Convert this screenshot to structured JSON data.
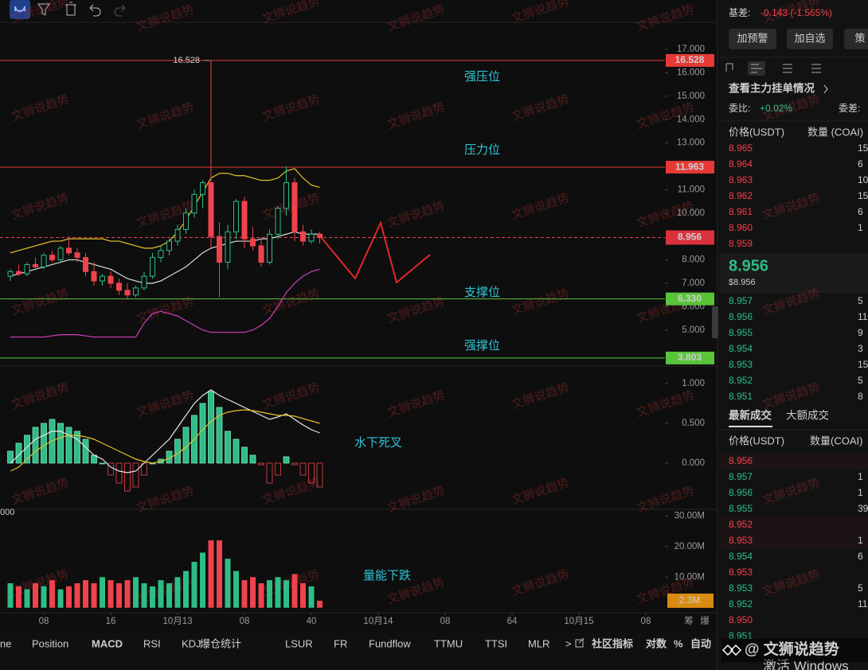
{
  "chart": {
    "xlim": [
      2.76,
      82.29
    ],
    "xticks": [
      {
        "value": 8,
        "label": "08"
      },
      16,
      {
        "value": 24,
        "label": "10月13"
      },
      {
        "value": 32,
        "label": "08"
      },
      40,
      {
        "value": 48,
        "label": "10月14"
      },
      {
        "value": 56,
        "label": "08"
      },
      64,
      {
        "value": 72,
        "label": "10月15"
      },
      {
        "value": 80,
        "label": "08"
      }
    ],
    "x": [
      4,
      5,
      6,
      7,
      8,
      9,
      10,
      11,
      12,
      13,
      14,
      15,
      16,
      17,
      18,
      19,
      20,
      21,
      22,
      23,
      24,
      25,
      26,
      27,
      28,
      29,
      30,
      31,
      32,
      33,
      34,
      35,
      36,
      37,
      38,
      39,
      40,
      41
    ],
    "price": {
      "ylim": [
        3.46,
        18.16
      ],
      "yticks": [
        {
          "value": 17,
          "label": "17.000"
        },
        {
          "value": 16,
          "label": "16.000"
        },
        {
          "value": 15,
          "label": "15.000"
        },
        {
          "value": 14,
          "label": "14.000"
        },
        {
          "value": 13,
          "label": "13.000"
        },
        {
          "value": 11,
          "label": "11.000"
        },
        {
          "value": 10,
          "label": "10.000"
        },
        {
          "value": 8,
          "label": "8.000"
        },
        {
          "value": 7,
          "label": "7.000"
        },
        {
          "value": 6,
          "label": "6.000"
        },
        {
          "value": 5,
          "label": "5.000"
        }
      ],
      "candles": [
        [
          7.3,
          7.6,
          7.1,
          7.5
        ],
        [
          7.5,
          7.8,
          7.3,
          7.4
        ],
        [
          7.4,
          7.9,
          7.3,
          7.8
        ],
        [
          7.8,
          8.1,
          7.6,
          7.7
        ],
        [
          7.7,
          8.3,
          7.6,
          8.2
        ],
        [
          8.2,
          8.4,
          7.9,
          8.0
        ],
        [
          8.0,
          8.6,
          7.9,
          8.5
        ],
        [
          8.5,
          9.0,
          8.2,
          8.3
        ],
        [
          8.3,
          8.5,
          7.9,
          8.1
        ],
        [
          8.1,
          8.3,
          7.3,
          7.5
        ],
        [
          7.5,
          7.9,
          6.9,
          7.1
        ],
        [
          7.1,
          7.4,
          6.9,
          7.3
        ],
        [
          7.3,
          7.5,
          6.8,
          7.0
        ],
        [
          7.0,
          7.2,
          6.5,
          6.7
        ],
        [
          6.7,
          7.0,
          6.3,
          6.5
        ],
        [
          6.5,
          6.9,
          6.4,
          6.8
        ],
        [
          6.8,
          7.5,
          6.7,
          7.3
        ],
        [
          7.3,
          8.3,
          7.2,
          8.1
        ],
        [
          8.1,
          8.6,
          7.9,
          8.4
        ],
        [
          8.4,
          8.9,
          8.2,
          8.8
        ],
        [
          8.8,
          9.5,
          8.6,
          9.3
        ],
        [
          9.3,
          10.2,
          9.1,
          10.0
        ],
        [
          10.0,
          11.0,
          9.8,
          10.8
        ],
        [
          10.8,
          11.4,
          10.2,
          11.3
        ],
        [
          11.3,
          16.528,
          8.5,
          9.0
        ],
        [
          9.0,
          9.6,
          6.4,
          7.9
        ],
        [
          7.9,
          9.5,
          7.6,
          9.2
        ],
        [
          9.2,
          10.6,
          8.9,
          10.5
        ],
        [
          10.5,
          10.7,
          8.5,
          8.9
        ],
        [
          8.9,
          9.4,
          8.4,
          8.6
        ],
        [
          8.6,
          8.9,
          7.7,
          7.9
        ],
        [
          7.9,
          9.3,
          7.8,
          9.1
        ],
        [
          9.1,
          10.3,
          8.9,
          10.2
        ],
        [
          10.2,
          12.0,
          9.9,
          11.3
        ],
        [
          11.3,
          11.5,
          8.8,
          9.2
        ],
        [
          9.2,
          9.5,
          8.6,
          8.8
        ],
        [
          8.8,
          9.3,
          8.7,
          9.1
        ],
        [
          9.1,
          9.2,
          8.7,
          8.956
        ]
      ],
      "upper": [
        8.3,
        8.4,
        8.5,
        8.6,
        8.7,
        8.8,
        8.8,
        8.9,
        8.9,
        8.9,
        8.9,
        8.9,
        8.8,
        8.8,
        8.7,
        8.6,
        8.5,
        8.5,
        8.6,
        8.8,
        9.2,
        9.7,
        10.3,
        10.9,
        11.5,
        11.7,
        11.7,
        11.6,
        11.6,
        11.5,
        11.4,
        11.4,
        11.5,
        11.8,
        11.9,
        11.5,
        11.2,
        11.1
      ],
      "mid": [
        7.3,
        7.4,
        7.5,
        7.6,
        7.7,
        7.8,
        7.9,
        8.0,
        8.0,
        7.9,
        7.8,
        7.7,
        7.6,
        7.4,
        7.2,
        7.1,
        7.0,
        7.0,
        7.1,
        7.3,
        7.5,
        7.7,
        8.0,
        8.3,
        8.5,
        8.6,
        8.7,
        8.8,
        8.8,
        8.8,
        8.9,
        8.9,
        9.0,
        9.1,
        9.2,
        9.1,
        9.1,
        9.1
      ],
      "lower": [
        4.7,
        4.7,
        4.7,
        4.7,
        4.7,
        4.75,
        4.8,
        4.8,
        4.8,
        4.75,
        4.7,
        4.7,
        4.7,
        4.7,
        4.7,
        4.7,
        5.3,
        5.7,
        5.8,
        5.7,
        5.6,
        5.4,
        5.2,
        5.0,
        4.9,
        4.9,
        4.9,
        4.9,
        4.9,
        5.0,
        5.2,
        5.5,
        6.0,
        6.6,
        7.0,
        7.3,
        7.5,
        7.6
      ],
      "upper_color": "#e6c229",
      "mid_color": "#dcdcdc",
      "lower_color": "#d23fb6",
      "levels": [
        {
          "value": 16.528,
          "color": "#e53935"
        },
        {
          "value": 11.963,
          "color": "#e53935"
        },
        {
          "value": 6.33,
          "label": "6.330",
          "color": "#58c43a"
        },
        {
          "value": 3.803,
          "color": "#58c43a"
        }
      ],
      "current": 8.956,
      "spike_label": "16.528",
      "annotations": [
        "强压位",
        "压力位",
        "支撑位",
        "强撑位"
      ]
    },
    "macd": {
      "ylim": [
        -0.58,
        1.22
      ],
      "yticks": [
        {
          "value": 1,
          "label": "1.000"
        },
        {
          "value": 0.5,
          "label": "0.500"
        },
        {
          "value": 0,
          "label": "0.000"
        }
      ],
      "hist": [
        0.15,
        0.25,
        0.35,
        0.45,
        0.5,
        0.55,
        0.5,
        0.45,
        0.4,
        0.3,
        0.1,
        0.0,
        -0.15,
        -0.25,
        -0.35,
        -0.3,
        -0.15,
        0.0,
        0.05,
        0.15,
        0.3,
        0.45,
        0.6,
        0.75,
        0.9,
        0.7,
        0.4,
        0.3,
        0.2,
        0.1,
        -0.02,
        -0.25,
        -0.15,
        0.08,
        -0.02,
        -0.15,
        -0.25,
        -0.3
      ],
      "dif": [
        0.0,
        0.1,
        0.2,
        0.3,
        0.35,
        0.4,
        0.4,
        0.35,
        0.3,
        0.2,
        0.1,
        0.05,
        -0.05,
        -0.1,
        -0.12,
        -0.1,
        0.0,
        0.1,
        0.2,
        0.3,
        0.45,
        0.6,
        0.75,
        0.85,
        0.92,
        0.85,
        0.8,
        0.75,
        0.7,
        0.65,
        0.6,
        0.55,
        0.58,
        0.62,
        0.55,
        0.48,
        0.42,
        0.38
      ],
      "dea": [
        -0.1,
        -0.05,
        0.05,
        0.15,
        0.22,
        0.28,
        0.32,
        0.35,
        0.35,
        0.33,
        0.3,
        0.25,
        0.2,
        0.15,
        0.1,
        0.05,
        0.02,
        0.0,
        0.02,
        0.06,
        0.12,
        0.2,
        0.3,
        0.42,
        0.52,
        0.6,
        0.64,
        0.66,
        0.67,
        0.66,
        0.64,
        0.62,
        0.6,
        0.6,
        0.59,
        0.56,
        0.53,
        0.5
      ],
      "left_label": "000",
      "annotation": "水下死叉"
    },
    "volume": {
      "ylim": [
        -1.62,
        32.16
      ],
      "yticks": [
        {
          "value": 30,
          "label": "30.00M"
        },
        {
          "value": 20,
          "label": "20.00M"
        },
        {
          "value": 10,
          "label": "10.00M"
        }
      ],
      "values": [
        8,
        7,
        6,
        8,
        7,
        9,
        6,
        7,
        8,
        9,
        8,
        10,
        9,
        8,
        9,
        10,
        8,
        7,
        9,
        8,
        10,
        12,
        15,
        18,
        22,
        22,
        16,
        12,
        9,
        10,
        8,
        9,
        10,
        9,
        11,
        8,
        7,
        2.3
      ],
      "last_label": "2.3M",
      "annotation": "量能下跌"
    },
    "corner_labels": [
      "筹",
      "爆"
    ]
  },
  "watermark": "文狮说趋势",
  "bottom_tabs": [
    "ne",
    "Position",
    "MACD",
    "RSI",
    "KDJ",
    "爆仓统计",
    "LSUR",
    "FR",
    "Fundflow",
    "TTMU",
    "TTSI",
    "MLR",
    ">",
    "社区指标",
    "对数",
    "%",
    "自动"
  ],
  "panel": {
    "basis_label": "基差:",
    "basis_value": "-0.143 (-1.565%)",
    "buttons": [
      "加预警",
      "加自选",
      "策"
    ],
    "depth_link": "查看主力挂单情况",
    "ratio_label": "委比:",
    "ratio_value": "+0.02%",
    "diff_label": "委差:",
    "book_header": [
      "价格(USDT)",
      "数量 (COAI)"
    ],
    "asks": [
      {
        "price": "8.965",
        "qty": "15"
      },
      {
        "price": "8.964",
        "qty": "6"
      },
      {
        "price": "8.963",
        "qty": "10"
      },
      {
        "price": "8.962",
        "qty": "15"
      },
      {
        "price": "8.961",
        "qty": "6"
      },
      {
        "price": "8.960",
        "qty": "1"
      },
      {
        "price": "8.959"
      }
    ],
    "last_price": "8.956",
    "last_usd": "$8.956",
    "bids": [
      {
        "price": "8.957",
        "qty": "5"
      },
      {
        "price": "8.956",
        "qty": "11"
      },
      {
        "price": "8.955",
        "qty": "9"
      },
      {
        "price": "8.954",
        "qty": "3"
      },
      {
        "price": "8.953",
        "qty": "15"
      },
      {
        "price": "8.952",
        "qty": "5"
      },
      {
        "price": "8.951",
        "qty": "8"
      }
    ],
    "trade_tabs": [
      "最新成交",
      "大额成交"
    ],
    "trade_header": [
      "价格(USDT)",
      "数量(COAI)"
    ],
    "trades": [
      {
        "price": "8.956",
        "side": "sell"
      },
      {
        "price": "8.957",
        "qty": "1",
        "side": "buy"
      },
      {
        "price": "8.956",
        "qty": "1",
        "side": "buy"
      },
      {
        "price": "8.955",
        "qty": "39",
        "side": "buy"
      },
      {
        "price": "8.952",
        "side": "sell"
      },
      {
        "price": "8.953",
        "qty": "1",
        "side": "sell"
      },
      {
        "price": "8.954",
        "qty": "6",
        "side": "buy"
      },
      {
        "price": "8.953",
        "side": "sell"
      },
      {
        "price": "8.953",
        "qty": "5",
        "side": "buy"
      },
      {
        "price": "8.952",
        "qty": "11",
        "side": "buy"
      },
      {
        "price": "8.950",
        "side": "sell"
      },
      {
        "price": "8.951",
        "side": "buy"
      }
    ]
  },
  "overlay": {
    "brand": "@ 文狮说趋势",
    "activate": "激活 Windows"
  }
}
